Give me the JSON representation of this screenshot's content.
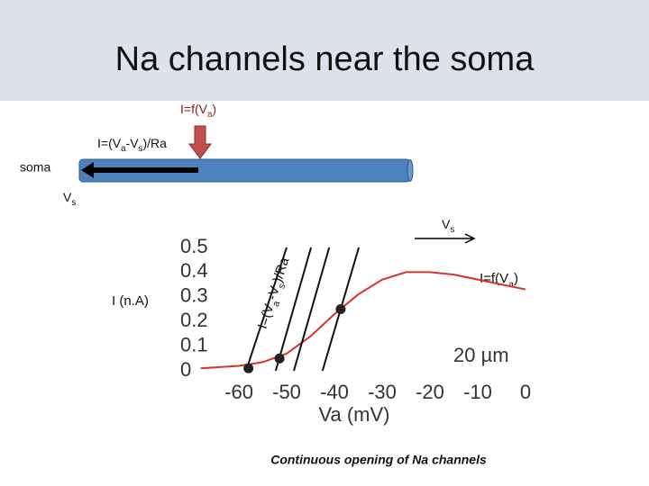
{
  "header": {
    "title": "Na channels near the soma"
  },
  "diagram": {
    "current_label": [
      "I=f(V",
      "a",
      ")"
    ],
    "axial_label": [
      "I=(V",
      "a",
      "-V",
      "s",
      ")/Ra"
    ],
    "soma_label": "soma",
    "vs_label": [
      "V",
      "s"
    ]
  },
  "chart_data": {
    "type": "line",
    "x_label": "Va (mV)",
    "y_label": "I (n.A)",
    "xlim": [
      -68.5,
      0
    ],
    "xticks": [
      -60,
      -50,
      -40,
      -30,
      -20,
      -10,
      0
    ],
    "ylim": [
      0,
      0.5
    ],
    "yticks": [
      0,
      0.1,
      0.2,
      0.3,
      0.4,
      0.5
    ],
    "series": [
      {
        "color": "#d9312b",
        "x": [
          -68,
          -60,
          -55,
          -50,
          -45,
          -40,
          -35,
          -30,
          -25,
          -20,
          -15,
          -10,
          -5,
          0
        ],
        "values": [
          0.01,
          0.02,
          0.035,
          0.07,
          0.14,
          0.23,
          0.31,
          0.37,
          0.4,
          0.4,
          0.39,
          0.37,
          0.35,
          0.33
        ]
      },
      {
        "color": "#111111",
        "x": [
          -58.5,
          -50
        ],
        "values": [
          0,
          0.5
        ]
      },
      {
        "color": "#111111",
        "x": [
          -52.3,
          -44.9
        ],
        "values": [
          0,
          0.5
        ]
      },
      {
        "color": "#111111",
        "x": [
          -48.5,
          -41.1
        ],
        "values": [
          0,
          0.5
        ]
      },
      {
        "color": "#111111",
        "x": [
          -42.5,
          -34.9
        ],
        "values": [
          0,
          0.5
        ]
      }
    ],
    "markers": {
      "color": "#222222",
      "x": [
        -58,
        -51.5,
        -38.7
      ],
      "values": [
        0.01,
        0.05,
        0.25
      ]
    },
    "scale_label": "20 µm",
    "curve_label": [
      "I=f(V",
      "a",
      ")"
    ],
    "load_label": [
      "I=(V",
      "a",
      "-V",
      "s",
      ")/Ra"
    ],
    "vs_label": [
      "V",
      "s"
    ]
  },
  "caption": "Continuous opening of Na channels"
}
